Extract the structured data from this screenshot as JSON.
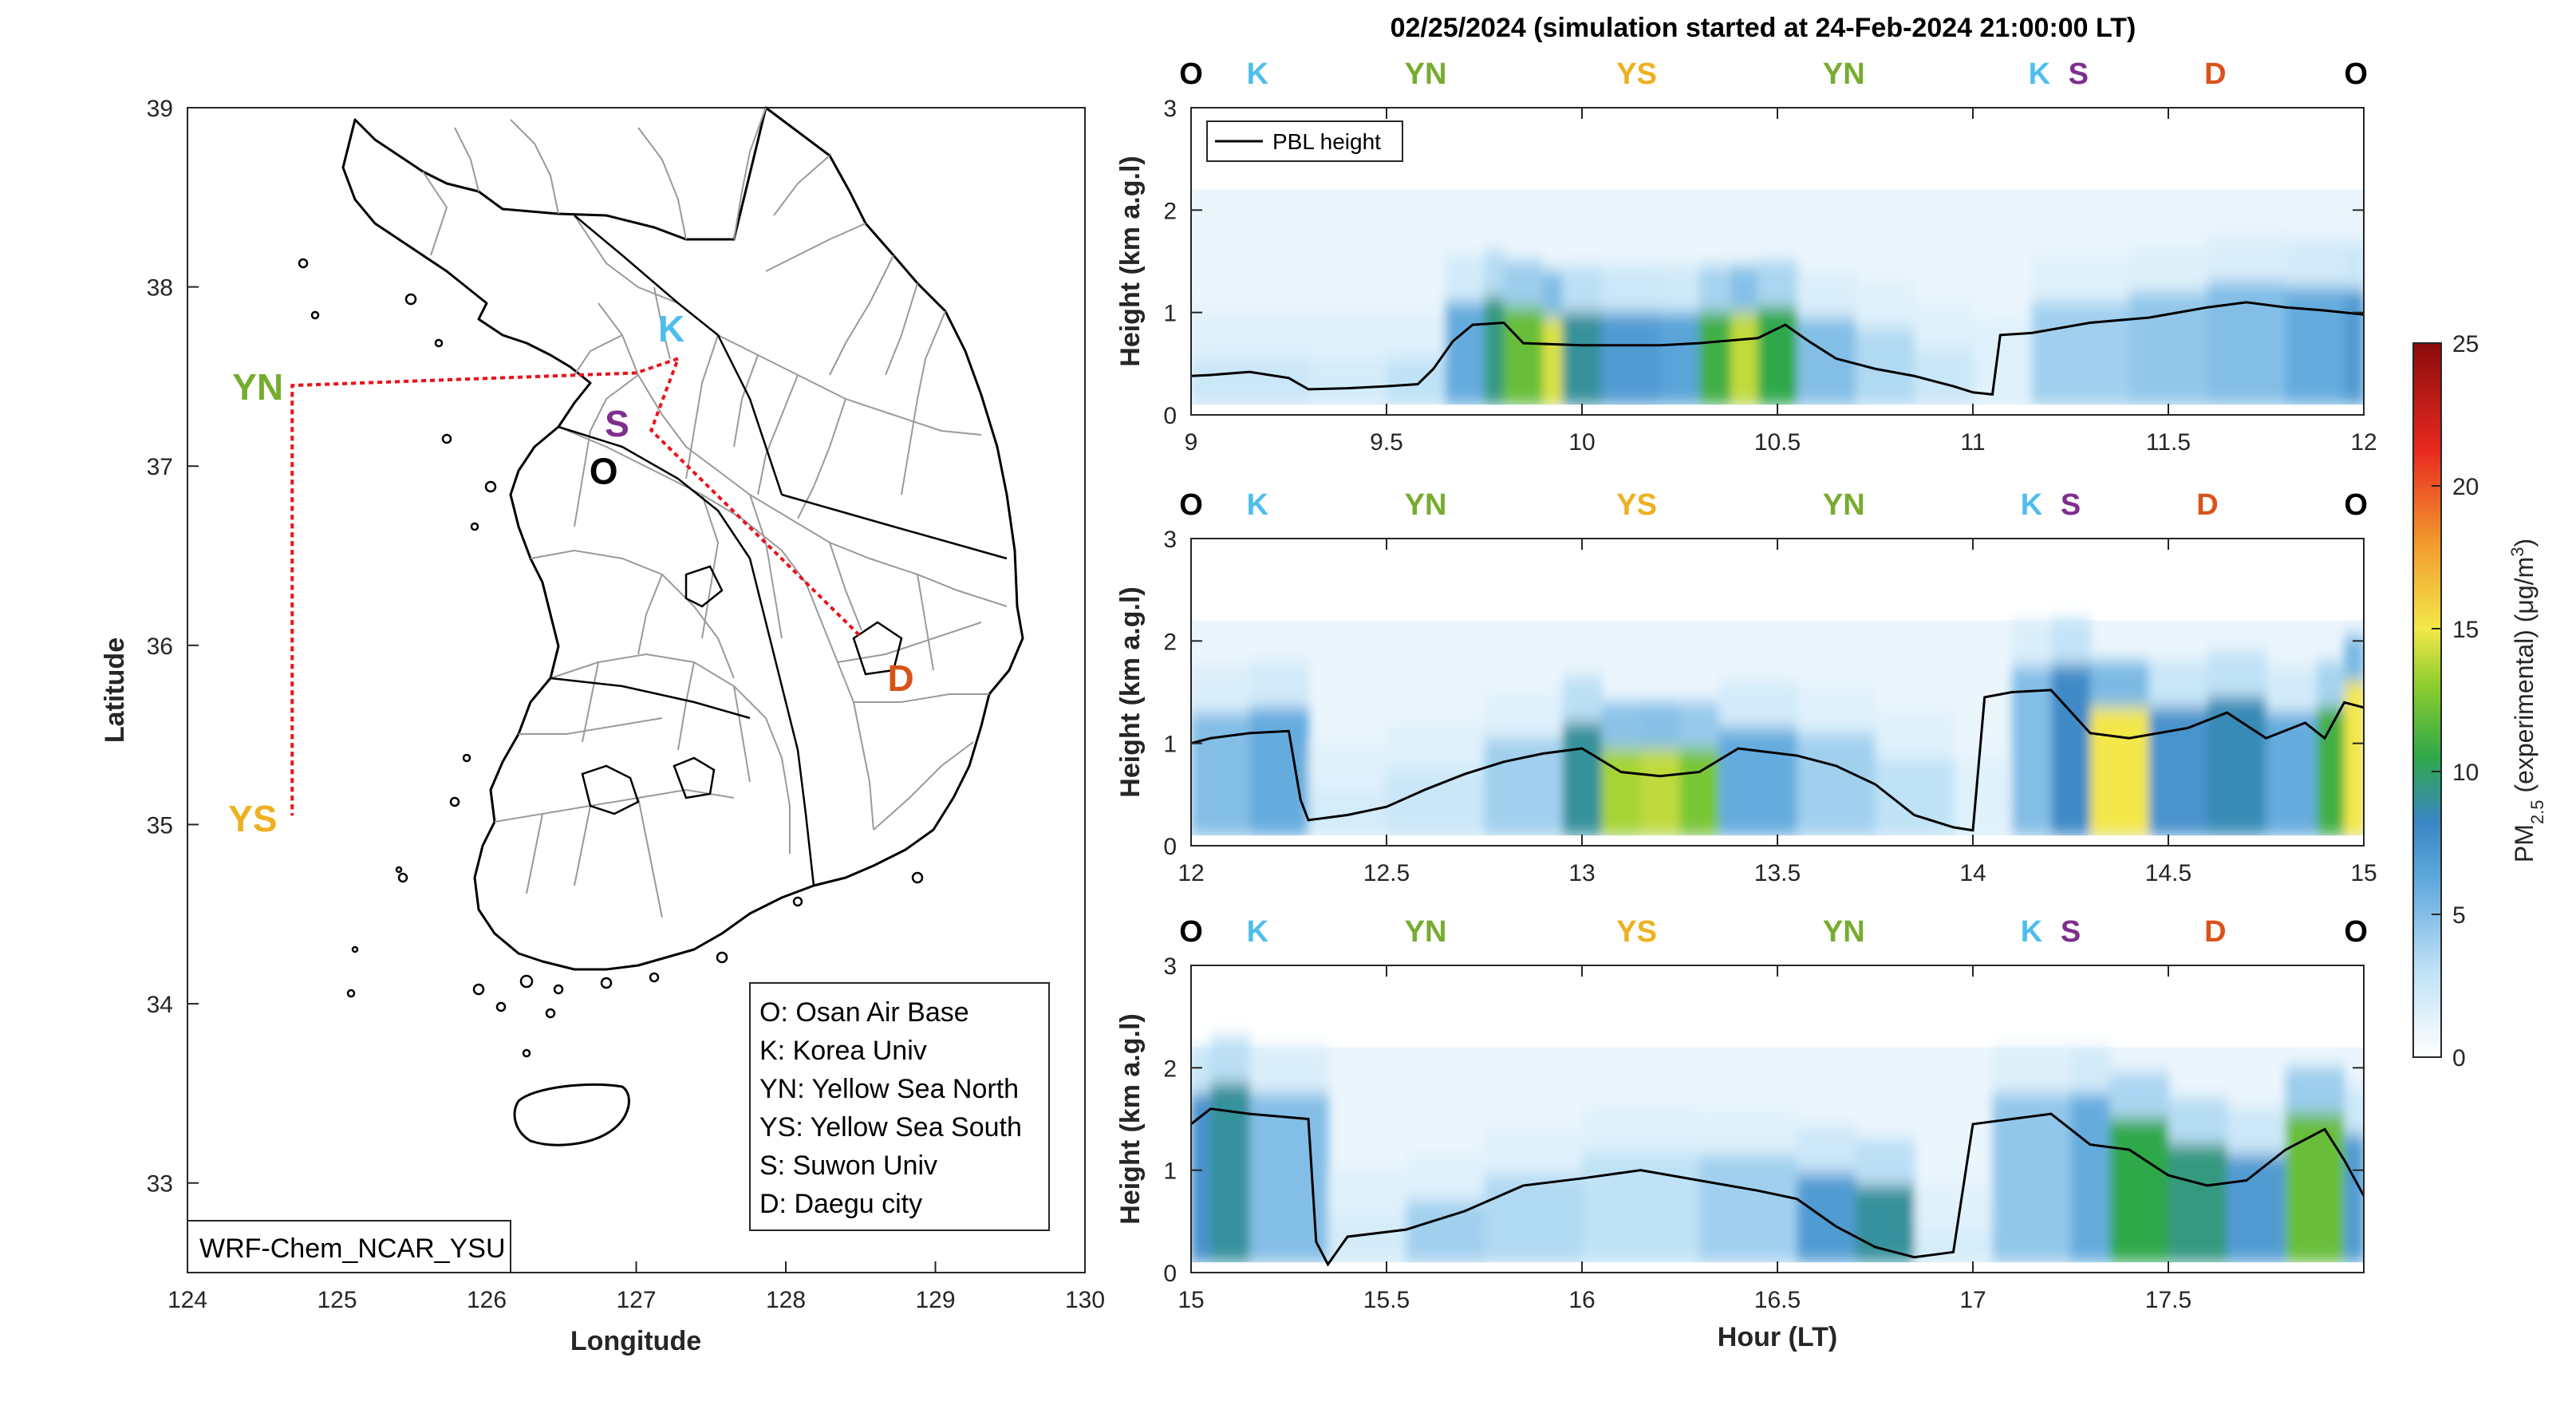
{
  "title": "02/25/2024 (simulation started at 24-Feb-2024 21:00:00 LT)",
  "colors": {
    "O": "#000000",
    "K": "#4DBEEE",
    "YN": "#77AC30",
    "YS": "#EDB120",
    "S": "#7E2F8E",
    "D": "#D95319",
    "track": "#E8141C"
  },
  "map": {
    "xlabel": "Longitude",
    "ylabel": "Latitude",
    "xticks": [
      "124",
      "125",
      "126",
      "127",
      "128",
      "129",
      "130"
    ],
    "yticks": [
      "33",
      "34",
      "35",
      "36",
      "37",
      "38",
      "39"
    ],
    "xlim": [
      124,
      130
    ],
    "ylim": [
      32.5,
      39
    ],
    "model_label": "WRF-Chem_NCAR_YSU",
    "stations": [
      {
        "key": "K",
        "label": "K",
        "lon": 127.2,
        "lat": 37.65
      },
      {
        "key": "S",
        "label": "S",
        "lon": 126.95,
        "lat": 37.3
      },
      {
        "key": "O",
        "label": "O",
        "lon": 126.9,
        "lat": 37.08
      },
      {
        "key": "YN",
        "label": "YN",
        "lon": 124.7,
        "lat": 37.45
      },
      {
        "key": "YS",
        "label": "YS",
        "lon": 124.7,
        "lat": 35.05
      },
      {
        "key": "D",
        "label": "D",
        "lon": 128.6,
        "lat": 35.88
      }
    ],
    "track": [
      [
        127.28,
        37.6
      ],
      [
        127.0,
        37.52
      ],
      [
        124.7,
        37.45
      ],
      [
        124.7,
        35.05
      ],
      [
        124.7,
        37.45
      ],
      [
        127.0,
        37.52
      ],
      [
        127.28,
        37.6
      ],
      [
        127.1,
        37.2
      ],
      [
        128.5,
        36.05
      ]
    ],
    "legend": [
      "O: Osan Air Base",
      "K: Korea Univ",
      "YN: Yellow Sea North",
      "YS: Yellow Sea South",
      "S: Suwon Univ",
      "D: Daegu city"
    ]
  },
  "chart_data": {
    "type": "heatmap",
    "title": "02/25/2024 (simulation started at 24-Feb-2024 21:00:00 LT)",
    "xlabel": "Hour (LT)",
    "ylabel": "Height (km a.g.l)",
    "colorbar": {
      "label": "PM",
      "label_sub": "2.5",
      "label_suffix": " (experimental) (μg/m",
      "label_sup": "3",
      "label_end": ")",
      "range": [
        0,
        25
      ],
      "ticks": [
        "0",
        "5",
        "10",
        "15",
        "20",
        "25"
      ],
      "colormap": [
        "#ffffff",
        "#9fd3f2",
        "#3f88c8",
        "#2fa84a",
        "#8ccd2e",
        "#f3e74a",
        "#f39a2e",
        "#e8291f",
        "#9a0f0f"
      ]
    },
    "legend": "PBL height",
    "station_sequence": [
      "O",
      "K",
      "YN",
      "YS",
      "YN",
      "K",
      "S",
      "D",
      "O"
    ],
    "panels": [
      {
        "xlim": [
          9,
          12
        ],
        "ylim": [
          0,
          3
        ],
        "xticks": [
          "9",
          "9.5",
          "10",
          "10.5",
          "11",
          "11.5",
          "12"
        ],
        "yticks": [
          "0",
          "1",
          "2",
          "3"
        ],
        "station_hours": [
          9.0,
          9.17,
          9.6,
          10.14,
          10.67,
          11.17,
          11.27,
          11.62,
          12.0
        ],
        "pbl": [
          [
            9.0,
            0.38
          ],
          [
            9.05,
            0.39
          ],
          [
            9.15,
            0.42
          ],
          [
            9.25,
            0.36
          ],
          [
            9.3,
            0.25
          ],
          [
            9.4,
            0.26
          ],
          [
            9.5,
            0.28
          ],
          [
            9.58,
            0.3
          ],
          [
            9.62,
            0.45
          ],
          [
            9.67,
            0.72
          ],
          [
            9.72,
            0.88
          ],
          [
            9.8,
            0.9
          ],
          [
            9.85,
            0.7
          ],
          [
            10.0,
            0.68
          ],
          [
            10.2,
            0.68
          ],
          [
            10.3,
            0.7
          ],
          [
            10.45,
            0.75
          ],
          [
            10.52,
            0.88
          ],
          [
            10.58,
            0.72
          ],
          [
            10.65,
            0.55
          ],
          [
            10.75,
            0.45
          ],
          [
            10.85,
            0.38
          ],
          [
            10.95,
            0.28
          ],
          [
            11.0,
            0.22
          ],
          [
            11.05,
            0.2
          ],
          [
            11.07,
            0.78
          ],
          [
            11.15,
            0.8
          ],
          [
            11.3,
            0.9
          ],
          [
            11.45,
            0.95
          ],
          [
            11.6,
            1.05
          ],
          [
            11.7,
            1.1
          ],
          [
            11.8,
            1.05
          ],
          [
            11.9,
            1.02
          ],
          [
            12.0,
            0.98
          ]
        ],
        "pm_columns": [
          [
            9.0,
            2.5,
            0.3
          ],
          [
            9.3,
            2.0,
            0.3
          ],
          [
            9.5,
            3.0,
            0.3
          ],
          [
            9.65,
            6.0,
            0.85
          ],
          [
            9.75,
            9.5,
            0.9
          ],
          [
            9.8,
            12.0,
            0.8
          ],
          [
            9.9,
            14.5,
            0.7
          ],
          [
            9.95,
            9.0,
            0.75
          ],
          [
            10.05,
            7.0,
            0.75
          ],
          [
            10.2,
            6.5,
            0.75
          ],
          [
            10.3,
            11.0,
            0.75
          ],
          [
            10.38,
            14.0,
            0.75
          ],
          [
            10.45,
            10.5,
            0.8
          ],
          [
            10.55,
            5.0,
            0.7
          ],
          [
            10.7,
            3.5,
            0.6
          ],
          [
            10.85,
            2.5,
            0.4
          ],
          [
            11.0,
            1.5,
            0.25
          ],
          [
            11.15,
            4.0,
            0.85
          ],
          [
            11.4,
            4.5,
            0.95
          ],
          [
            11.6,
            5.0,
            1.05
          ],
          [
            11.8,
            6.0,
            1.0
          ],
          [
            11.95,
            7.0,
            0.98
          ]
        ]
      },
      {
        "xlim": [
          12,
          15
        ],
        "ylim": [
          0,
          3
        ],
        "xticks": [
          "12",
          "12.5",
          "13",
          "13.5",
          "14",
          "14.5",
          "15"
        ],
        "yticks": [
          "0",
          "1",
          "2",
          "3"
        ],
        "station_hours": [
          12.0,
          12.17,
          12.6,
          13.14,
          13.67,
          14.15,
          14.25,
          14.6,
          15.0
        ],
        "pbl": [
          [
            12.0,
            1.0
          ],
          [
            12.05,
            1.05
          ],
          [
            12.15,
            1.1
          ],
          [
            12.25,
            1.12
          ],
          [
            12.28,
            0.45
          ],
          [
            12.3,
            0.25
          ],
          [
            12.4,
            0.3
          ],
          [
            12.5,
            0.38
          ],
          [
            12.6,
            0.55
          ],
          [
            12.7,
            0.7
          ],
          [
            12.8,
            0.82
          ],
          [
            12.9,
            0.9
          ],
          [
            13.0,
            0.95
          ],
          [
            13.1,
            0.72
          ],
          [
            13.2,
            0.68
          ],
          [
            13.3,
            0.72
          ],
          [
            13.4,
            0.95
          ],
          [
            13.55,
            0.88
          ],
          [
            13.65,
            0.78
          ],
          [
            13.75,
            0.6
          ],
          [
            13.85,
            0.3
          ],
          [
            13.95,
            0.18
          ],
          [
            14.0,
            0.15
          ],
          [
            14.03,
            1.45
          ],
          [
            14.1,
            1.5
          ],
          [
            14.2,
            1.52
          ],
          [
            14.3,
            1.1
          ],
          [
            14.4,
            1.05
          ],
          [
            14.55,
            1.15
          ],
          [
            14.65,
            1.3
          ],
          [
            14.75,
            1.05
          ],
          [
            14.85,
            1.2
          ],
          [
            14.9,
            1.05
          ],
          [
            14.95,
            1.4
          ],
          [
            15.0,
            1.35
          ]
        ],
        "pm_columns": [
          [
            12.0,
            5.0,
            1.05
          ],
          [
            12.15,
            6.0,
            1.1
          ],
          [
            12.3,
            2.0,
            0.3
          ],
          [
            12.5,
            2.5,
            0.5
          ],
          [
            12.75,
            4.0,
            0.8
          ],
          [
            12.95,
            9.0,
            0.95
          ],
          [
            13.05,
            13.5,
            0.7
          ],
          [
            13.15,
            14.0,
            0.7
          ],
          [
            13.25,
            12.5,
            0.7
          ],
          [
            13.35,
            6.0,
            0.9
          ],
          [
            13.55,
            4.0,
            0.85
          ],
          [
            13.75,
            3.0,
            0.6
          ],
          [
            13.95,
            1.5,
            0.15
          ],
          [
            14.1,
            5.0,
            1.5
          ],
          [
            14.2,
            8.0,
            1.52
          ],
          [
            14.3,
            15.0,
            1.1
          ],
          [
            14.45,
            7.5,
            1.1
          ],
          [
            14.6,
            8.5,
            1.2
          ],
          [
            14.75,
            6.0,
            1.05
          ],
          [
            14.88,
            11.0,
            1.1
          ],
          [
            14.95,
            15.0,
            1.35
          ]
        ]
      },
      {
        "xlim": [
          15,
          18
        ],
        "ylim": [
          0,
          3
        ],
        "xticks": [
          "15",
          "15.5",
          "16",
          "16.5",
          "17",
          "17.5"
        ],
        "yticks": [
          "0",
          "1",
          "2",
          "3"
        ],
        "station_hours": [
          15.0,
          15.17,
          15.6,
          16.14,
          16.67,
          17.15,
          17.25,
          17.62,
          18.0
        ],
        "pbl": [
          [
            15.0,
            1.45
          ],
          [
            15.05,
            1.6
          ],
          [
            15.15,
            1.55
          ],
          [
            15.3,
            1.5
          ],
          [
            15.32,
            0.3
          ],
          [
            15.35,
            0.08
          ],
          [
            15.4,
            0.35
          ],
          [
            15.55,
            0.42
          ],
          [
            15.7,
            0.6
          ],
          [
            15.85,
            0.85
          ],
          [
            16.0,
            0.92
          ],
          [
            16.15,
            1.0
          ],
          [
            16.3,
            0.9
          ],
          [
            16.45,
            0.8
          ],
          [
            16.55,
            0.72
          ],
          [
            16.65,
            0.45
          ],
          [
            16.75,
            0.25
          ],
          [
            16.85,
            0.15
          ],
          [
            16.95,
            0.2
          ],
          [
            17.0,
            1.45
          ],
          [
            17.1,
            1.5
          ],
          [
            17.2,
            1.55
          ],
          [
            17.3,
            1.25
          ],
          [
            17.4,
            1.2
          ],
          [
            17.5,
            0.95
          ],
          [
            17.6,
            0.85
          ],
          [
            17.7,
            0.9
          ],
          [
            17.8,
            1.2
          ],
          [
            17.9,
            1.4
          ],
          [
            17.95,
            1.1
          ],
          [
            18.0,
            0.75
          ]
        ],
        "pm_columns": [
          [
            15.0,
            7.5,
            1.5
          ],
          [
            15.05,
            9.0,
            1.6
          ],
          [
            15.15,
            5.0,
            1.5
          ],
          [
            15.35,
            2.0,
            0.3
          ],
          [
            15.55,
            4.0,
            0.45
          ],
          [
            15.75,
            3.5,
            0.7
          ],
          [
            16.0,
            3.0,
            0.92
          ],
          [
            16.3,
            4.0,
            0.9
          ],
          [
            16.55,
            7.0,
            0.72
          ],
          [
            16.7,
            9.0,
            0.6
          ],
          [
            16.85,
            2.0,
            0.15
          ],
          [
            17.05,
            4.5,
            1.5
          ],
          [
            17.25,
            6.0,
            1.5
          ],
          [
            17.35,
            10.5,
            1.25
          ],
          [
            17.5,
            9.5,
            1.0
          ],
          [
            17.65,
            7.0,
            0.9
          ],
          [
            17.8,
            12.0,
            1.3
          ],
          [
            17.95,
            7.0,
            1.1
          ]
        ]
      }
    ]
  }
}
